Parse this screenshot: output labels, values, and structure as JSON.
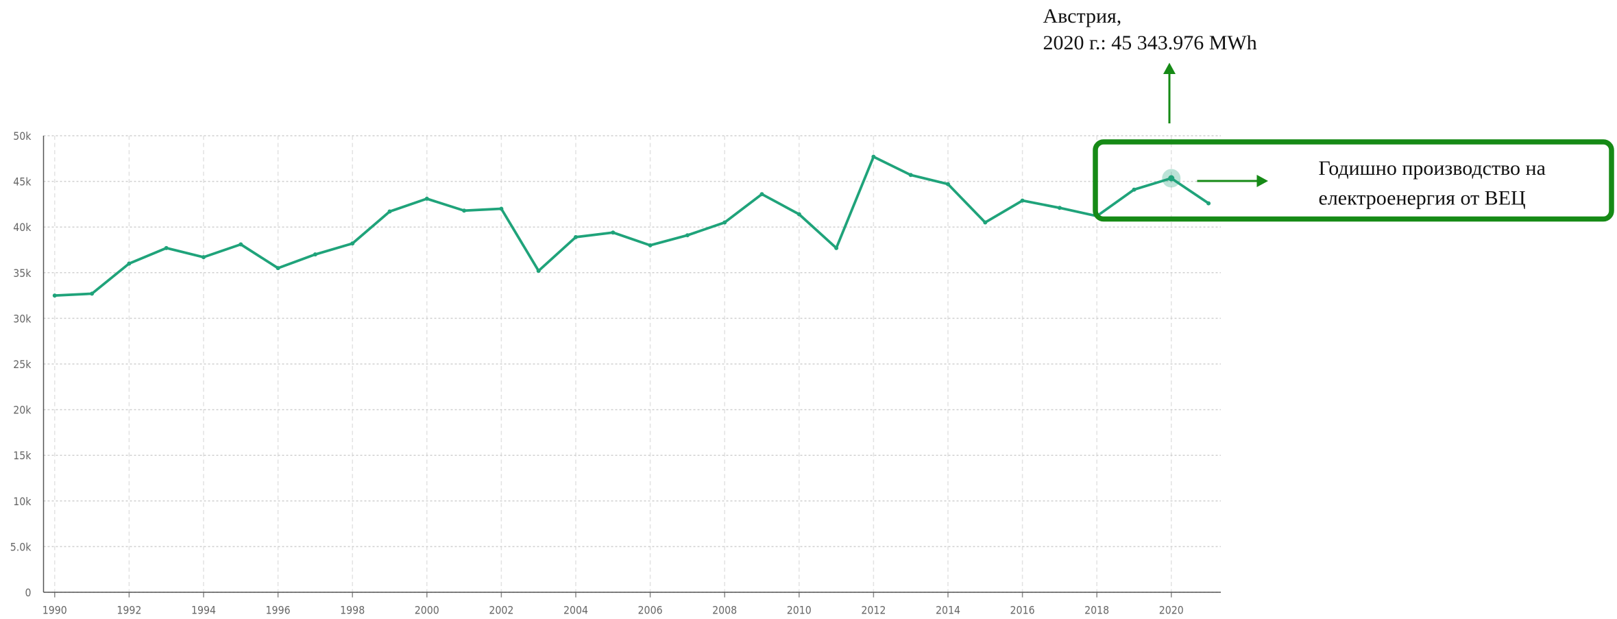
{
  "chart_data": {
    "type": "line",
    "x": [
      1990,
      1991,
      1992,
      1993,
      1994,
      1995,
      1996,
      1997,
      1998,
      1999,
      2000,
      2001,
      2002,
      2003,
      2004,
      2005,
      2006,
      2007,
      2008,
      2009,
      2010,
      2011,
      2012,
      2013,
      2014,
      2015,
      2016,
      2017,
      2018,
      2019,
      2020,
      2021
    ],
    "series": [
      {
        "name": null,
        "color": "#1fa37a",
        "values": [
          32500,
          32700,
          36000,
          37700,
          36700,
          38100,
          35500,
          37000,
          38200,
          41700,
          43100,
          41800,
          42000,
          35200,
          38900,
          39400,
          38000,
          39100,
          40500,
          43600,
          41400,
          37700,
          47700,
          45700,
          44700,
          40500,
          42900,
          42100,
          41200,
          44100,
          45343.976,
          42600
        ]
      }
    ],
    "xlim": [
      1989.7,
      2021.33
    ],
    "xticks": [
      1990,
      1992,
      1994,
      1996,
      1998,
      2000,
      2002,
      2004,
      2006,
      2008,
      2010,
      2012,
      2014,
      2016,
      2018,
      2020
    ],
    "ylim": [
      0,
      50000
    ],
    "yticks": [
      0,
      {
        "value": 5000,
        "label": "5.0k"
      },
      {
        "value": 10000,
        "label": "10k"
      },
      {
        "value": 15000,
        "label": "15k"
      },
      {
        "value": 20000,
        "label": "20k"
      },
      {
        "value": 25000,
        "label": "25k"
      },
      {
        "value": 30000,
        "label": "30k"
      },
      {
        "value": 35000,
        "label": "35k"
      },
      {
        "value": 40000,
        "label": "40k"
      },
      {
        "value": 45000,
        "label": "45k"
      },
      {
        "value": 50000,
        "label": "50k"
      }
    ],
    "grid": true,
    "tooltip": {
      "lines": [
        "Австрия,",
        "2020 г.: 45 343.976 MWh"
      ]
    },
    "annotation": {
      "lines": [
        "Годишно  производство  на",
        "електроенергия от ВЕЦ"
      ],
      "color": "#168a16"
    }
  }
}
